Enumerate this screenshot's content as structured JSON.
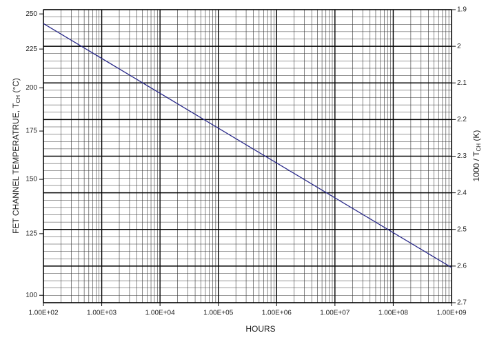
{
  "chart_data": {
    "type": "line",
    "xlabel": "HOURS",
    "ylabel": {
      "text": "FET CHANNEL TEMPERATRUE, T",
      "sub": "CH",
      "suffix": " (°C)"
    },
    "y2label": {
      "text": "1000 / T",
      "sub": "CH",
      "suffix": " (K)"
    },
    "xscale": "log",
    "xlim": [
      100,
      1000000000
    ],
    "xticks": [
      {
        "value": 100,
        "label": "1.00E+02"
      },
      {
        "value": 1000,
        "label": "1.00E+03"
      },
      {
        "value": 10000,
        "label": "1.00E+04"
      },
      {
        "value": 100000,
        "label": "1.00E+05"
      },
      {
        "value": 1000000,
        "label": "1.00E+06"
      },
      {
        "value": 10000000,
        "label": "1.00E+07"
      },
      {
        "value": 100000000,
        "label": "1.00E+08"
      },
      {
        "value": 1000000000,
        "label": "1.00E+09"
      }
    ],
    "yscale": "inverse-kelvin",
    "ylim": [
      253.2,
      97.2
    ],
    "yticks": [
      250,
      225,
      200,
      175,
      150,
      125,
      100
    ],
    "y2lim": [
      1.9,
      2.7
    ],
    "y2ticks": [
      1.9,
      2,
      2.1,
      2.2,
      2.3,
      2.4,
      2.5,
      2.6,
      2.7
    ],
    "grid": true,
    "series": [
      {
        "color": "#2a2a8a",
        "axis": "y2",
        "x": [
          100,
          1000000000
        ],
        "values": [
          1.938,
          2.604
        ]
      }
    ]
  }
}
